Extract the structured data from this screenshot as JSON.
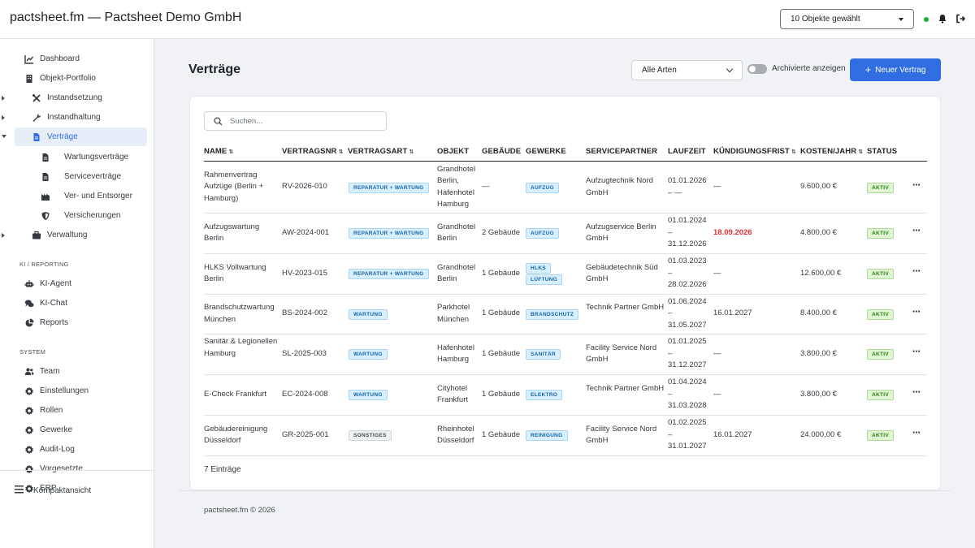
{
  "header": {
    "title": "pactsheet.fm — Pactsheet Demo GmbH",
    "object_selector": "10 Objekte gewählt"
  },
  "sidebar": {
    "items": [
      {
        "label": "Dashboard",
        "icon": "chart-line-icon"
      },
      {
        "label": "Objekt-Portfolio",
        "icon": "building-icon"
      },
      {
        "label": "Instandsetzung",
        "icon": "tools-icon"
      },
      {
        "label": "Instandhaltung",
        "icon": "wrench-icon"
      },
      {
        "label": "Verträge",
        "icon": "file-contract-icon"
      },
      {
        "label": "Wartungsverträge",
        "icon": "file-icon"
      },
      {
        "label": "Serviceverträge",
        "icon": "file-icon"
      },
      {
        "label": "Ver- und Entsorger",
        "icon": "industry-icon"
      },
      {
        "label": "Versicherungen",
        "icon": "shield-icon"
      },
      {
        "label": "Verwaltung",
        "icon": "briefcase-icon"
      }
    ],
    "section_ki": "KI / REPORTING",
    "ki_items": [
      {
        "label": "KI-Agent",
        "icon": "robot-icon"
      },
      {
        "label": "KI-Chat",
        "icon": "chat-icon"
      },
      {
        "label": "Reports",
        "icon": "pie-chart-icon"
      }
    ],
    "section_system": "SYSTEM",
    "system_items": [
      {
        "label": "Team",
        "icon": "users-icon"
      },
      {
        "label": "Einstellungen",
        "icon": "gear-icon"
      },
      {
        "label": "Rollen",
        "icon": "gear-icon"
      },
      {
        "label": "Gewerke",
        "icon": "gear-icon"
      },
      {
        "label": "Audit-Log",
        "icon": "gear-icon"
      },
      {
        "label": "Vorgesetzte",
        "icon": "gear-icon"
      },
      {
        "label": "ERP",
        "icon": "gear-icon"
      }
    ],
    "compact": "Kompaktansicht"
  },
  "main": {
    "title": "Verträge",
    "type_select": "Alle Arten",
    "archived_label": "Archivierte anzeigen",
    "new_button": "Neuer Vertrag",
    "search_placeholder": "Suchen...",
    "columns": [
      "NAME",
      "VERTRAGSNR",
      "VERTRAGSART",
      "OBJEKT",
      "GEBÄUDE",
      "GEWERKE",
      "SERVICEPARTNER",
      "LAUFZEIT",
      "KÜNDIGUNGSFRIST",
      "KOSTEN/JAHR",
      "STATUS"
    ],
    "rows": [
      {
        "name": "Rahmenvertrag Aufzüge (Berlin + Hamburg)",
        "nr": "RV-2026-010",
        "art": "REPARATUR + WARTUNG",
        "objekt": "Grandhotel Berlin, Hafenhotel Hamburg",
        "gebaeude": "—",
        "gewerke": [
          "AUFZUG"
        ],
        "partner": "Aufzugtechnik Nord GmbH",
        "laufzeit": "01.01.2026 – —",
        "frist": "—",
        "kosten": "9.600,00 €",
        "status": "AKTIV"
      },
      {
        "name": "Aufzugswartung Berlin",
        "nr": "AW-2024-001",
        "art": "REPARATUR + WARTUNG",
        "objekt": "Grandhotel Berlin",
        "gebaeude": "2 Gebäude",
        "gewerke": [
          "AUFZUG"
        ],
        "partner": "Aufzugservice Berlin GmbH",
        "laufzeit": "01.01.2024 – 31.12.2026",
        "frist": "18.09.2026",
        "kosten": "4.800,00 €",
        "status": "AKTIV"
      },
      {
        "name": "HLKS Vollwartung Berlin",
        "nr": "HV-2023-015",
        "art": "REPARATUR + WARTUNG",
        "objekt": "Grandhotel Berlin",
        "gebaeude": "1 Gebäude",
        "gewerke": [
          "HLKS",
          "LÜFTUNG"
        ],
        "partner": "Gebäudetechnik Süd GmbH",
        "laufzeit": "01.03.2023 – 28.02.2026",
        "frist": "—",
        "kosten": "12.600,00 €",
        "status": "AKTIV"
      },
      {
        "name": "Brandschutzwartung München",
        "nr": "BS-2024-002",
        "art": "WARTUNG",
        "objekt": "Parkhotel München",
        "gebaeude": "1 Gebäude",
        "gewerke": [
          "BRANDSCHUTZ"
        ],
        "partner": "Technik Partner GmbH",
        "laufzeit": "01.06.2024 – 31.05.2027",
        "frist": "16.01.2027",
        "kosten": "8.400,00 €",
        "status": "AKTIV"
      },
      {
        "name": "Sanitär & Legionellen Hamburg",
        "nr": "SL-2025-003",
        "art": "WARTUNG",
        "objekt": "Hafenhotel Hamburg",
        "gebaeude": "1 Gebäude",
        "gewerke": [
          "SANITÄR"
        ],
        "partner": "Facility Service Nord GmbH",
        "laufzeit": "01.01.2025 – 31.12.2027",
        "frist": "—",
        "kosten": "3.800,00 €",
        "status": "AKTIV"
      },
      {
        "name": "E-Check Frankfurt",
        "nr": "EC-2024-008",
        "art": "WARTUNG",
        "objekt": "Cityhotel Frankfurt",
        "gebaeude": "1 Gebäude",
        "gewerke": [
          "ELEKTRO"
        ],
        "partner": "Technik Partner GmbH",
        "laufzeit": "01.04.2024 – 31.03.2028",
        "frist": "—",
        "kosten": "3.800,00 €",
        "status": "AKTIV"
      },
      {
        "name": "Gebäudereinigung Düsseldorf",
        "nr": "GR-2025-001",
        "art": "SONSTIGES",
        "objekt": "Rheinhotel Düsseldorf",
        "gebaeude": "1 Gebäude",
        "gewerke": [
          "REINIGUNG"
        ],
        "partner": "Facility Service Nord GmbH",
        "laufzeit": "01.02.2025 – 31.01.2027",
        "frist": "16.01.2027",
        "kosten": "24.000,00 €",
        "status": "AKTIV"
      }
    ],
    "count": "7 Einträge",
    "row_actions": "⋯"
  },
  "footer": "pactsheet.fm © 2026",
  "colors": {
    "accent": "#2f6de1",
    "danger": "#e03131",
    "status_ok": "#1fae35"
  }
}
